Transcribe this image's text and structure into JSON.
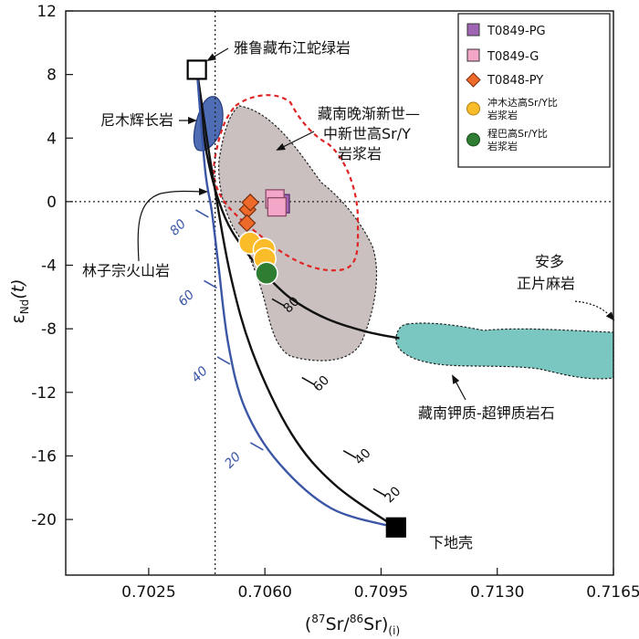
{
  "chart_data": {
    "type": "scatter",
    "title": "",
    "xlabel_parts": {
      "open": "(",
      "sup1": "87",
      "mid": "Sr/",
      "sup2": "86",
      "tail": "Sr)",
      "sub": "(i)"
    },
    "ylabel_parts": {
      "main": "ε",
      "sub": "Nd",
      "tail": "(t)"
    },
    "xlim": [
      0.7,
      0.7165
    ],
    "ylim": [
      -23.5,
      12
    ],
    "x_ticks": [
      0.7025,
      0.706,
      0.7095,
      0.713,
      0.7165
    ],
    "x_tick_labels": [
      "0.7025",
      "0.7060",
      "0.7095",
      "0.7130",
      "0.7165"
    ],
    "y_ticks": [
      12,
      8,
      4,
      0,
      -4,
      -8,
      -12,
      -16,
      -20
    ],
    "y_tick_labels": [
      "12",
      "8",
      "4",
      "0",
      "-4",
      "-8",
      "-12",
      "-16",
      "-20"
    ],
    "reference_lines": {
      "x": 0.7045,
      "y": 0
    },
    "series": [
      {
        "name": "T0849-PG",
        "marker": "square",
        "color": "#a064b4",
        "points": [
          [
            0.70638,
            -0.3
          ]
        ]
      },
      {
        "name": "T0849-G",
        "marker": "square",
        "color": "#f4a6c8",
        "points": [
          [
            0.70622,
            0.0
          ],
          [
            0.70628,
            -0.5
          ]
        ]
      },
      {
        "name": "T0848-PY",
        "marker": "diamond",
        "color": "#ee6a2a",
        "points": [
          [
            0.70548,
            -0.5
          ],
          [
            0.70556,
            -0.05
          ],
          [
            0.70546,
            -1.35
          ]
        ]
      },
      {
        "name": "冲木达高Sr/Y比岩浆岩",
        "marker": "circle",
        "color": "#fbbc2a",
        "points": [
          [
            0.70555,
            -2.6
          ],
          [
            0.70598,
            -3.0
          ],
          [
            0.706,
            -3.6
          ]
        ]
      },
      {
        "name": "程巴高Sr/Y比岩浆岩",
        "marker": "circle",
        "color": "#2e7d32",
        "points": [
          [
            0.70605,
            -4.5
          ]
        ]
      }
    ],
    "end_members": [
      {
        "name": "雅鲁藏布江蛇绿岩",
        "marker": "open-square",
        "x": 0.70395,
        "y": 8.3
      },
      {
        "name": "下地壳",
        "marker": "filled-square",
        "x": 0.70995,
        "y": -20.5
      }
    ],
    "mixing_curves": [
      {
        "name": "mixing-black",
        "color": "#111111",
        "points": [
          [
            0.70395,
            8.3
          ],
          [
            0.70425,
            3.0
          ],
          [
            0.7048,
            -1.0
          ],
          [
            0.7056,
            -3.6
          ],
          [
            0.7064,
            -5.4
          ],
          [
            0.707,
            -6.4
          ],
          [
            0.7079,
            -7.4
          ],
          [
            0.709,
            -8.15
          ],
          [
            0.71005,
            -8.6
          ]
        ],
        "tick_labels": [
          {
            "t": "80",
            "x": 0.70605,
            "y": -6.35
          }
        ]
      },
      {
        "name": "mixing-black-2",
        "color": "#111111",
        "points": [
          [
            0.70395,
            8.3
          ],
          [
            0.7044,
            2.0
          ],
          [
            0.70495,
            -4.5
          ],
          [
            0.70565,
            -9.6
          ],
          [
            0.7068,
            -14.6
          ],
          [
            0.7081,
            -17.8
          ],
          [
            0.70995,
            -20.5
          ]
        ],
        "tick_labels": [
          {
            "t": "60",
            "x": 0.70695,
            "y": -11.3
          },
          {
            "t": "40",
            "x": 0.7082,
            "y": -15.9
          },
          {
            "t": "20",
            "x": 0.7091,
            "y": -18.3
          }
        ]
      },
      {
        "name": "mixing-blue",
        "color": "#3a56a5",
        "points": [
          [
            0.70395,
            8.3
          ],
          [
            0.7042,
            2.0
          ],
          [
            0.7044,
            -0.6
          ],
          [
            0.7046,
            -4.0
          ],
          [
            0.7049,
            -9.0
          ],
          [
            0.7054,
            -13.0
          ],
          [
            0.7064,
            -16.4
          ],
          [
            0.708,
            -19.3
          ],
          [
            0.70995,
            -20.5
          ]
        ],
        "tick_labels": [
          {
            "t": "80",
            "x": 0.70375,
            "y": -0.75
          },
          {
            "t": "60",
            "x": 0.704,
            "y": -5.2
          },
          {
            "t": "40",
            "x": 0.7044,
            "y": -10.0
          },
          {
            "t": "20",
            "x": 0.7054,
            "y": -15.4
          }
        ]
      }
    ],
    "annotations": [
      "雅鲁藏布江蛇绿岩",
      "尼木辉长岩",
      "林子宗火山岩",
      "藏南晚渐新世—",
      "中新世高Sr/Y",
      "岩浆岩",
      "安多",
      "正片麻岩",
      "藏南钾质-超钾质岩石",
      "下地壳"
    ],
    "legend_lines": {
      "chongmuda": [
        "冲木达高Sr/Y比",
        "岩浆岩"
      ],
      "chengba": [
        "程巴高Sr/Y比",
        "岩浆岩"
      ]
    }
  }
}
